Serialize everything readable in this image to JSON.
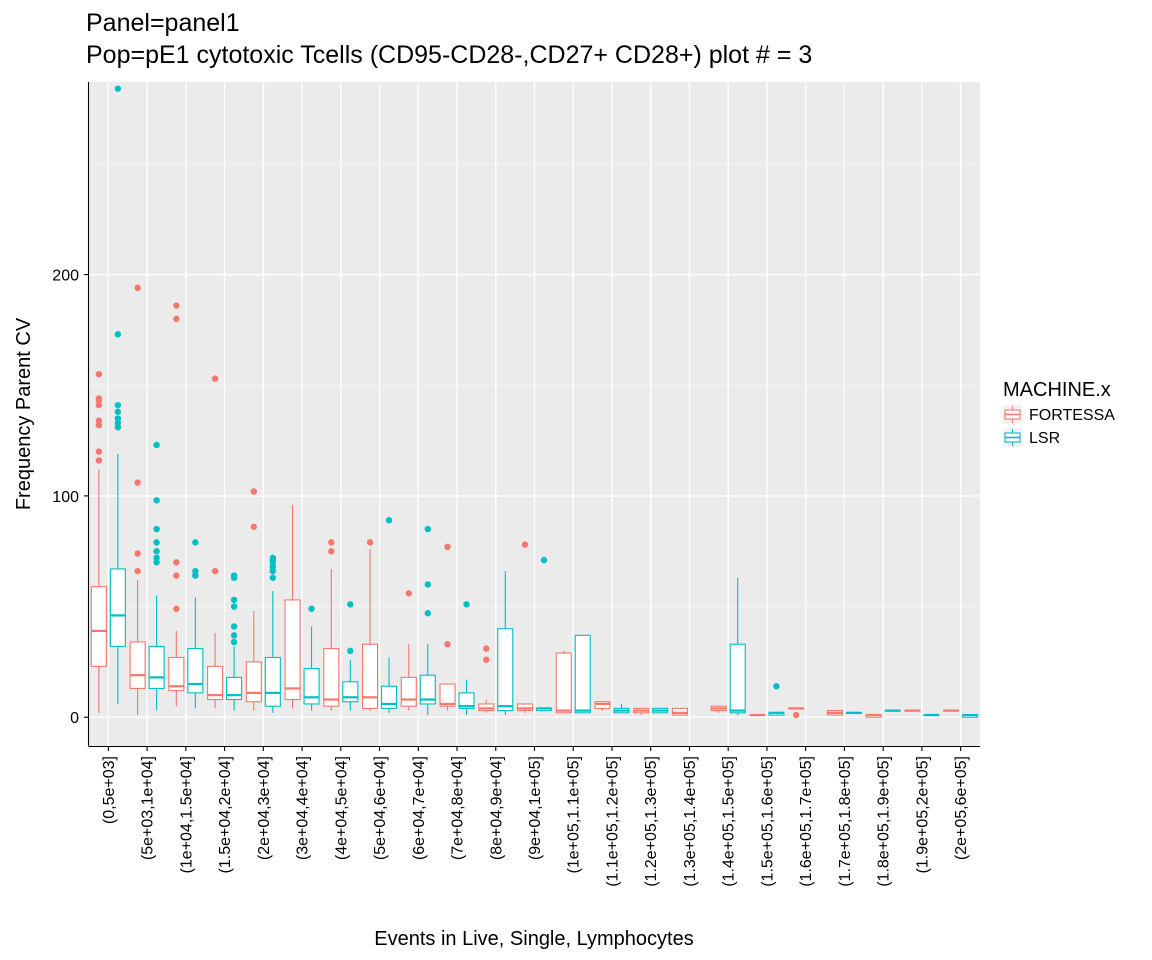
{
  "chart_data": {
    "type": "boxplot",
    "title_line1": "Panel=panel1",
    "title_line2": "Pop=pE1 cytotoxic Tcells (CD95-CD28-,CD27+  CD28+) plot # = 3",
    "xlabel": "Events in Live, Single, Lymphocytes",
    "ylabel": "Frequency Parent CV",
    "ylim": [
      -13,
      287
    ],
    "yticks": [
      0,
      100,
      200
    ],
    "grid": true,
    "legend": {
      "title": "MACHINE.x",
      "placement": "right",
      "items": [
        {
          "name": "FORTESSA",
          "color": "#F8766D"
        },
        {
          "name": "LSR",
          "color": "#00BFC4"
        }
      ]
    },
    "categories": [
      "(0,5e+03]",
      "(5e+03,1e+04]",
      "(1e+04,1.5e+04]",
      "(1.5e+04,2e+04]",
      "(2e+04,3e+04]",
      "(3e+04,4e+04]",
      "(4e+04,5e+04]",
      "(5e+04,6e+04]",
      "(6e+04,7e+04]",
      "(7e+04,8e+04]",
      "(8e+04,9e+04]",
      "(9e+04,1e+05]",
      "(1e+05,1.1e+05]",
      "(1.1e+05,1.2e+05]",
      "(1.2e+05,1.3e+05]",
      "(1.3e+05,1.4e+05]",
      "(1.4e+05,1.5e+05]",
      "(1.5e+05,1.6e+05]",
      "(1.6e+05,1.7e+05]",
      "(1.7e+05,1.8e+05]",
      "(1.8e+05,1.9e+05]",
      "(1.9e+05,2e+05]",
      "(2e+05,6e+05]"
    ],
    "series": [
      {
        "name": "FORTESSA",
        "color": "#F8766D",
        "boxes": [
          {
            "cat": 0,
            "min": 2,
            "q1": 23,
            "median": 39,
            "q3": 59,
            "max": 112,
            "outliers": [
              116,
              120,
              132,
              134,
              141,
              143,
              144,
              155
            ]
          },
          {
            "cat": 1,
            "min": 1,
            "q1": 13,
            "median": 19,
            "q3": 34,
            "max": 62,
            "outliers": [
              66,
              74,
              106,
              194
            ]
          },
          {
            "cat": 2,
            "min": 5,
            "q1": 12,
            "median": 14,
            "q3": 27,
            "max": 39,
            "outliers": [
              49,
              64,
              70,
              180,
              186
            ]
          },
          {
            "cat": 3,
            "min": 4,
            "q1": 8,
            "median": 10,
            "q3": 23,
            "max": 38,
            "outliers": [
              66,
              153
            ]
          },
          {
            "cat": 4,
            "min": 3,
            "q1": 7,
            "median": 11,
            "q3": 25,
            "max": 48,
            "outliers": [
              86,
              102
            ]
          },
          {
            "cat": 5,
            "min": 4,
            "q1": 8,
            "median": 13,
            "q3": 53,
            "max": 96,
            "outliers": []
          },
          {
            "cat": 6,
            "min": 3,
            "q1": 5,
            "median": 8,
            "q3": 31,
            "max": 67,
            "outliers": [
              75,
              79
            ]
          },
          {
            "cat": 7,
            "min": 3,
            "q1": 4,
            "median": 9,
            "q3": 33,
            "max": 76,
            "outliers": [
              79
            ]
          },
          {
            "cat": 8,
            "min": 3,
            "q1": 5,
            "median": 8,
            "q3": 18,
            "max": 33,
            "outliers": [
              56
            ]
          },
          {
            "cat": 9,
            "min": 3,
            "q1": 5,
            "median": 6,
            "q3": 15,
            "max": 15,
            "outliers": [
              33,
              77
            ]
          },
          {
            "cat": 10,
            "min": 2,
            "q1": 3,
            "median": 4,
            "q3": 6,
            "max": 8,
            "outliers": [
              26,
              31
            ]
          },
          {
            "cat": 11,
            "min": 2,
            "q1": 3,
            "median": 4,
            "q3": 6,
            "max": 6,
            "outliers": [
              78
            ]
          },
          {
            "cat": 12,
            "min": 2,
            "q1": 2,
            "median": 3,
            "q3": 29,
            "max": 30,
            "outliers": []
          },
          {
            "cat": 13,
            "min": 3,
            "q1": 4,
            "median": 6,
            "q3": 7,
            "max": 7,
            "outliers": []
          },
          {
            "cat": 14,
            "min": 1,
            "q1": 2,
            "median": 3,
            "q3": 4,
            "max": 4,
            "outliers": []
          },
          {
            "cat": 15,
            "min": 1,
            "q1": 1,
            "median": 2,
            "q3": 4,
            "max": 4,
            "outliers": []
          },
          {
            "cat": 16,
            "min": 2,
            "q1": 3,
            "median": 4,
            "q3": 5,
            "max": 5,
            "outliers": []
          },
          {
            "cat": 17,
            "min": 1,
            "q1": 1,
            "median": 1,
            "q3": 1,
            "max": 1,
            "outliers": []
          },
          {
            "cat": 18,
            "min": 4,
            "q1": 4,
            "median": 4,
            "q3": 4,
            "max": 4,
            "outliers": [
              1
            ]
          },
          {
            "cat": 19,
            "min": 1,
            "q1": 1,
            "median": 2,
            "q3": 3,
            "max": 3,
            "outliers": []
          },
          {
            "cat": 20,
            "min": 0,
            "q1": 0,
            "median": 1,
            "q3": 1,
            "max": 1,
            "outliers": []
          },
          {
            "cat": 21,
            "min": 3,
            "q1": 3,
            "median": 3,
            "q3": 3,
            "max": 3,
            "outliers": []
          },
          {
            "cat": 22,
            "min": 3,
            "q1": 3,
            "median": 3,
            "q3": 3,
            "max": 3,
            "outliers": []
          }
        ]
      },
      {
        "name": "LSR",
        "color": "#00BFC4",
        "boxes": [
          {
            "cat": 0,
            "min": 6,
            "q1": 32,
            "median": 46,
            "q3": 67,
            "max": 119,
            "outliers": [
              131,
              133,
              135,
              138,
              141,
              173,
              284
            ]
          },
          {
            "cat": 1,
            "min": 3,
            "q1": 13,
            "median": 18,
            "q3": 32,
            "max": 55,
            "outliers": [
              70,
              72,
              75,
              79,
              85,
              98,
              123
            ]
          },
          {
            "cat": 2,
            "min": 4,
            "q1": 11,
            "median": 15,
            "q3": 31,
            "max": 54,
            "outliers": [
              64,
              66,
              79
            ]
          },
          {
            "cat": 3,
            "min": 3,
            "q1": 8,
            "median": 10,
            "q3": 18,
            "max": 32,
            "outliers": [
              34,
              37,
              41,
              50,
              53,
              63,
              64
            ]
          },
          {
            "cat": 4,
            "min": 2,
            "q1": 5,
            "median": 11,
            "q3": 27,
            "max": 57,
            "outliers": [
              63,
              66,
              68,
              70,
              71,
              72
            ]
          },
          {
            "cat": 5,
            "min": 3,
            "q1": 6,
            "median": 9,
            "q3": 22,
            "max": 41,
            "outliers": [
              49
            ]
          },
          {
            "cat": 6,
            "min": 3,
            "q1": 7,
            "median": 9,
            "q3": 16,
            "max": 26,
            "outliers": [
              30,
              51
            ]
          },
          {
            "cat": 7,
            "min": 2,
            "q1": 4,
            "median": 6,
            "q3": 14,
            "max": 27,
            "outliers": [
              89
            ]
          },
          {
            "cat": 8,
            "min": 1,
            "q1": 6,
            "median": 8,
            "q3": 19,
            "max": 33,
            "outliers": [
              47,
              60,
              85
            ]
          },
          {
            "cat": 9,
            "min": 1,
            "q1": 4,
            "median": 5,
            "q3": 11,
            "max": 17,
            "outliers": [
              51
            ]
          },
          {
            "cat": 10,
            "min": 1,
            "q1": 3,
            "median": 5,
            "q3": 40,
            "max": 66,
            "outliers": []
          },
          {
            "cat": 11,
            "min": 3,
            "q1": 3,
            "median": 4,
            "q3": 4,
            "max": 4,
            "outliers": [
              71
            ]
          },
          {
            "cat": 12,
            "min": 2,
            "q1": 2,
            "median": 3,
            "q3": 37,
            "max": 37,
            "outliers": []
          },
          {
            "cat": 13,
            "min": 2,
            "q1": 2,
            "median": 3,
            "q3": 4,
            "max": 6,
            "outliers": []
          },
          {
            "cat": 14,
            "min": 2,
            "q1": 2,
            "median": 3,
            "q3": 4,
            "max": 4,
            "outliers": []
          },
          {
            "cat": 16,
            "min": 1,
            "q1": 2,
            "median": 3,
            "q3": 33,
            "max": 63,
            "outliers": []
          },
          {
            "cat": 17,
            "min": 1,
            "q1": 1,
            "median": 2,
            "q3": 2,
            "max": 2,
            "outliers": [
              14
            ]
          },
          {
            "cat": 19,
            "min": 2,
            "q1": 2,
            "median": 2,
            "q3": 2,
            "max": 2,
            "outliers": []
          },
          {
            "cat": 20,
            "min": 3,
            "q1": 3,
            "median": 3,
            "q3": 3,
            "max": 3,
            "outliers": []
          },
          {
            "cat": 21,
            "min": 1,
            "q1": 1,
            "median": 1,
            "q3": 1,
            "max": 1,
            "outliers": []
          },
          {
            "cat": 22,
            "min": 0,
            "q1": 0,
            "median": 1,
            "q3": 1,
            "max": 1,
            "outliers": []
          }
        ]
      }
    ]
  }
}
